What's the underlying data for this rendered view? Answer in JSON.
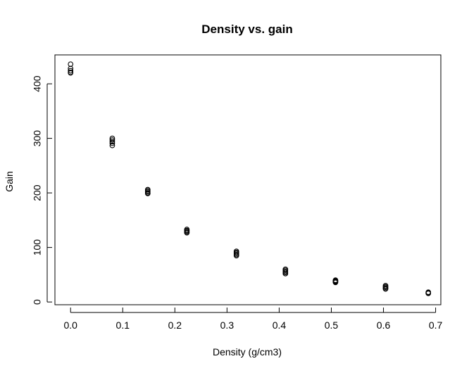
{
  "chart_data": {
    "type": "scatter",
    "title": "Density vs. gain",
    "xlabel": "Density (g/cm3)",
    "ylabel": "Gain",
    "xlim": [
      -0.03,
      0.71
    ],
    "ylim": [
      -5,
      453
    ],
    "xticks": [
      0.0,
      0.1,
      0.2,
      0.3,
      0.4,
      0.5,
      0.6,
      0.7
    ],
    "xtick_labels": [
      "0.0",
      "0.1",
      "0.2",
      "0.3",
      "0.4",
      "0.5",
      "0.6",
      "0.7"
    ],
    "yticks": [
      0,
      100,
      200,
      300,
      400
    ],
    "ytick_labels": [
      "0",
      "100",
      "200",
      "300",
      "400"
    ],
    "grid": false,
    "legend": "none",
    "series": [
      {
        "points": [
          [
            0.0,
            436
          ],
          [
            0.0,
            428
          ],
          [
            0.0,
            424
          ],
          [
            0.0,
            421
          ],
          [
            0.0,
            420
          ],
          [
            0.08,
            300
          ],
          [
            0.08,
            297
          ],
          [
            0.08,
            294
          ],
          [
            0.08,
            291
          ],
          [
            0.08,
            287
          ],
          [
            0.148,
            206
          ],
          [
            0.148,
            204
          ],
          [
            0.148,
            202
          ],
          [
            0.148,
            200
          ],
          [
            0.148,
            199
          ],
          [
            0.223,
            133
          ],
          [
            0.223,
            131
          ],
          [
            0.223,
            130
          ],
          [
            0.223,
            128
          ],
          [
            0.223,
            127
          ],
          [
            0.318,
            93
          ],
          [
            0.318,
            91
          ],
          [
            0.318,
            89
          ],
          [
            0.318,
            87
          ],
          [
            0.318,
            85
          ],
          [
            0.412,
            60
          ],
          [
            0.412,
            58
          ],
          [
            0.412,
            56
          ],
          [
            0.412,
            54
          ],
          [
            0.412,
            52
          ],
          [
            0.508,
            40
          ],
          [
            0.508,
            39
          ],
          [
            0.508,
            38
          ],
          [
            0.508,
            37
          ],
          [
            0.508,
            36
          ],
          [
            0.604,
            30
          ],
          [
            0.604,
            28
          ],
          [
            0.604,
            27
          ],
          [
            0.604,
            25
          ],
          [
            0.604,
            24
          ],
          [
            0.686,
            18
          ],
          [
            0.686,
            17
          ],
          [
            0.686,
            17
          ],
          [
            0.686,
            16
          ],
          [
            0.686,
            16
          ]
        ]
      }
    ]
  }
}
